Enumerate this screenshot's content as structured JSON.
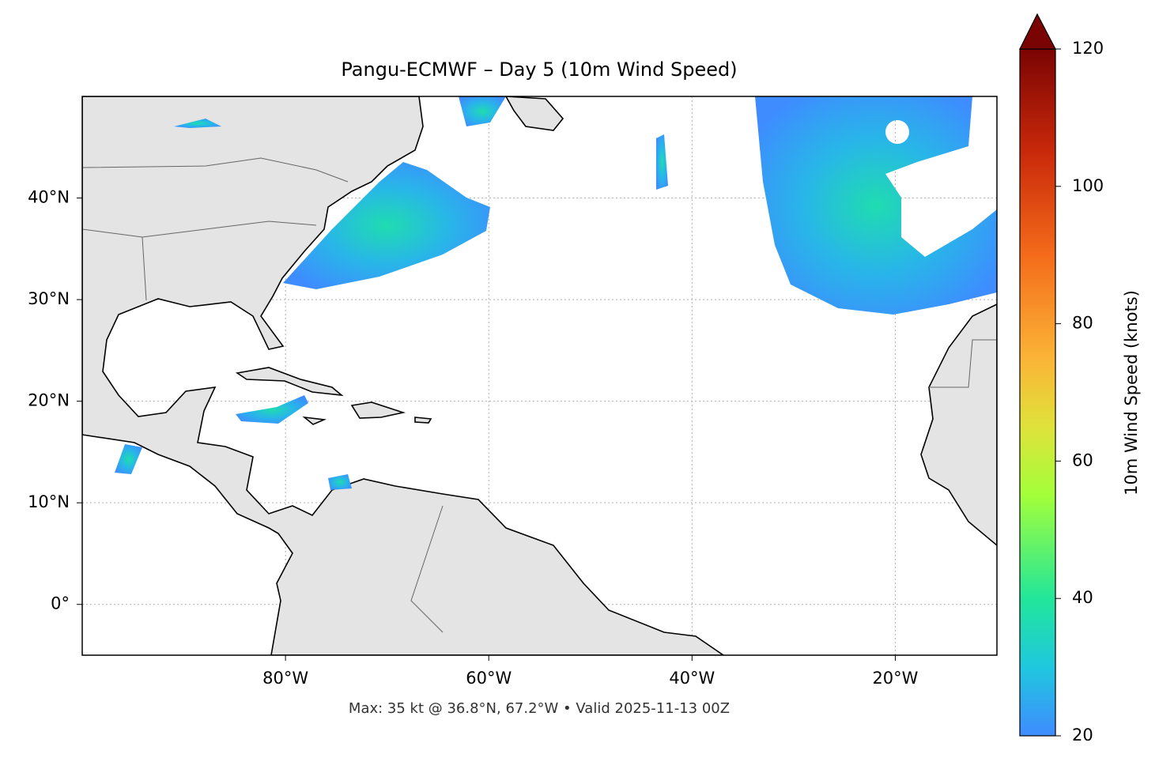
{
  "chart_data": {
    "type": "map",
    "title": "Pangu-ECMWF – Day 5 (10m Wind Speed)",
    "xlim": [
      -100,
      -10
    ],
    "ylim": [
      -5,
      50
    ],
    "xticks": [
      {
        "value": -80,
        "label": "80°W"
      },
      {
        "value": -60,
        "label": "60°W"
      },
      {
        "value": -40,
        "label": "40°W"
      },
      {
        "value": -20,
        "label": "20°W"
      }
    ],
    "yticks": [
      {
        "value": 0,
        "label": "0°"
      },
      {
        "value": 10,
        "label": "10°N"
      },
      {
        "value": 20,
        "label": "20°N"
      },
      {
        "value": 30,
        "label": "30°N"
      },
      {
        "value": 40,
        "label": "40°N"
      }
    ],
    "grid": true,
    "colorbar": {
      "label": "10m Wind Speed (knots)",
      "lim": [
        20,
        120
      ],
      "ticks": [
        20,
        40,
        60,
        80,
        100,
        120
      ],
      "extend": "max"
    },
    "annotation": "Max: 35 kt @ 36.8°N, 67.2°W • Valid 2025-11-13 00Z"
  }
}
